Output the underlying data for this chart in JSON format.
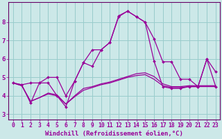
{
  "background_color": "#cce8e8",
  "grid_color": "#99cccc",
  "line_color": "#990099",
  "spine_color": "#660066",
  "xlabel": "Windchill (Refroidissement éolien,°C)",
  "xlabel_fontsize": 6.5,
  "xtick_fontsize": 5.8,
  "ytick_fontsize": 6.5,
  "ylim": [
    2.7,
    9.1
  ],
  "xlim": [
    -0.5,
    23.5
  ],
  "yticks": [
    3,
    4,
    5,
    6,
    7,
    8
  ],
  "xticks": [
    0,
    1,
    2,
    3,
    4,
    5,
    6,
    7,
    8,
    9,
    10,
    11,
    12,
    13,
    14,
    15,
    16,
    17,
    18,
    19,
    20,
    21,
    22,
    23
  ],
  "series1_x": [
    0,
    1,
    2,
    3,
    4,
    5,
    6,
    7,
    8,
    9,
    10,
    11,
    12,
    13,
    14,
    15,
    16,
    17,
    18,
    19,
    20,
    21,
    22,
    23
  ],
  "series1_y": [
    4.7,
    4.6,
    4.7,
    4.7,
    5.0,
    5.0,
    4.0,
    4.8,
    5.8,
    6.5,
    6.5,
    6.9,
    8.35,
    8.6,
    8.3,
    8.0,
    7.1,
    5.85,
    5.85,
    4.9,
    4.9,
    4.5,
    6.0,
    5.3
  ],
  "series2_x": [
    0,
    1,
    2,
    3,
    4,
    5,
    6,
    7,
    8,
    9,
    10,
    11,
    12,
    13,
    14,
    15,
    16,
    17,
    18,
    19,
    20,
    21,
    22,
    23
  ],
  "series2_y": [
    4.7,
    4.6,
    3.6,
    4.7,
    4.7,
    4.0,
    3.4,
    4.8,
    5.8,
    5.6,
    6.5,
    6.9,
    8.3,
    8.6,
    8.3,
    8.0,
    5.9,
    4.5,
    4.4,
    4.4,
    4.5,
    4.5,
    6.0,
    4.5
  ],
  "series3_x": [
    0,
    1,
    2,
    3,
    4,
    5,
    6,
    7,
    8,
    9,
    10,
    11,
    12,
    13,
    14,
    15,
    16,
    17,
    18,
    19,
    20,
    21,
    22,
    23
  ],
  "series3_y": [
    4.7,
    4.55,
    3.7,
    3.9,
    4.1,
    4.0,
    3.55,
    3.95,
    4.3,
    4.45,
    4.6,
    4.7,
    4.85,
    5.0,
    5.1,
    5.15,
    4.9,
    4.55,
    4.45,
    4.45,
    4.5,
    4.5,
    4.5,
    4.5
  ],
  "series4_x": [
    0,
    1,
    2,
    3,
    4,
    5,
    6,
    7,
    8,
    9,
    10,
    11,
    12,
    13,
    14,
    15,
    16,
    17,
    18,
    19,
    20,
    21,
    22,
    23
  ],
  "series4_y": [
    4.7,
    4.55,
    3.7,
    3.9,
    4.15,
    4.05,
    3.55,
    4.0,
    4.4,
    4.5,
    4.65,
    4.75,
    4.9,
    5.05,
    5.2,
    5.25,
    5.05,
    4.65,
    4.5,
    4.5,
    4.55,
    4.55,
    4.55,
    4.55
  ]
}
